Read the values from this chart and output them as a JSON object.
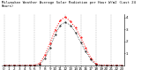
{
  "title": "Milwaukee Weather Average Solar Radiation per Hour W/m2 (Last 24 Hours)",
  "hours": [
    0,
    1,
    2,
    3,
    4,
    5,
    6,
    7,
    8,
    9,
    10,
    11,
    12,
    13,
    14,
    15,
    16,
    17,
    18,
    19,
    20,
    21,
    22,
    23
  ],
  "solar_values": [
    0,
    0,
    0,
    0,
    0,
    2,
    3,
    18,
    85,
    185,
    295,
    375,
    405,
    365,
    315,
    235,
    145,
    62,
    12,
    3,
    1,
    0,
    0,
    0
  ],
  "avg_values": [
    0,
    0,
    0,
    0,
    0,
    0,
    1,
    10,
    60,
    150,
    255,
    335,
    360,
    335,
    275,
    195,
    115,
    48,
    6,
    1,
    0,
    0,
    0,
    0
  ],
  "line_color": "#ff0000",
  "avg_color": "#000000",
  "bg_color": "#ffffff",
  "grid_color": "#999999",
  "grid_hours": [
    0,
    3,
    6,
    9,
    12,
    15,
    18,
    21
  ],
  "ylim": [
    0,
    430
  ],
  "ytick_values": [
    100,
    200,
    300,
    400
  ],
  "ytick_labels": [
    "1",
    "2",
    "3",
    "4"
  ],
  "tick_fontsize": 3.0,
  "title_fontsize": 2.8,
  "linewidth": 0.7,
  "markersize": 1.0
}
